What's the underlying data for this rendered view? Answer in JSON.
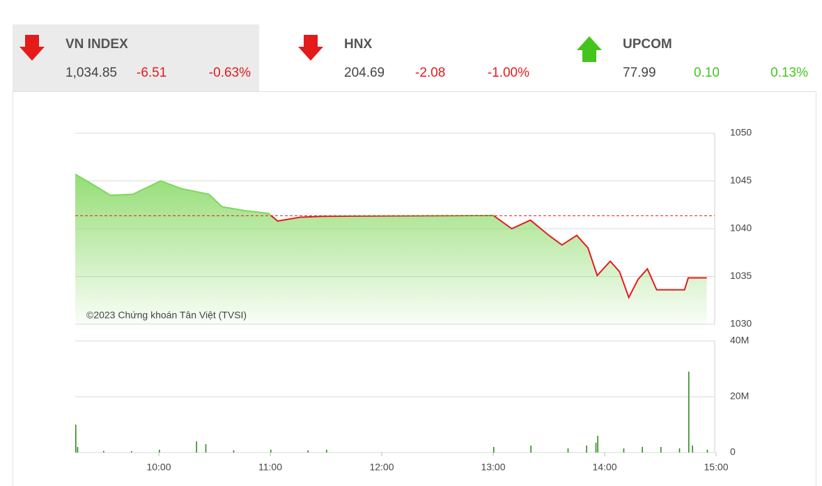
{
  "indices": [
    {
      "name": "VN INDEX",
      "value": "1,034.85",
      "change": "-6.51",
      "percent": "-0.63%"
    },
    {
      "name": "HNX",
      "value": "204.69",
      "change": "-2.08",
      "percent": "-1.00%"
    },
    {
      "name": "UPCOM",
      "value": "77.99",
      "change": "0.10",
      "percent": "0.13%"
    }
  ],
  "chart_data": [
    {
      "type": "line",
      "annotation": "©2023 Chứng khoán Tân Việt (TVSI)",
      "x": [
        "09:15",
        "09:23",
        "09:34",
        "09:46",
        "10:01",
        "10:12",
        "10:27",
        "10:34",
        "10:46",
        "10:59",
        "11:04",
        "11:16",
        "11:28",
        "13:00",
        "13:10",
        "13:20",
        "13:30",
        "13:37",
        "13:45",
        "13:51",
        "13:56",
        "14:03",
        "14:08",
        "14:13",
        "14:18",
        "14:23",
        "14:28",
        "14:43",
        "14:45",
        "14:55"
      ],
      "values": [
        1045.7,
        1044.8,
        1043.5,
        1043.6,
        1045.0,
        1044.2,
        1043.6,
        1042.3,
        1041.9,
        1041.6,
        1040.8,
        1041.2,
        1041.3,
        1041.4,
        1040.0,
        1040.9,
        1039.3,
        1038.3,
        1039.3,
        1038.0,
        1035.1,
        1036.6,
        1035.5,
        1032.8,
        1034.7,
        1035.8,
        1033.6,
        1033.6,
        1034.85,
        1034.85
      ],
      "color": "#7fd65f",
      "down_color": "#e31b1b",
      "reference_line": 1041.36,
      "xlim": [
        "09:15",
        "15:00"
      ],
      "ylim": [
        1030,
        1050
      ],
      "yticks": [
        1030,
        1035,
        1040,
        1045,
        1050
      ],
      "grid": true
    },
    {
      "type": "bar",
      "x": [
        "09:15",
        "09:16",
        "09:30",
        "09:45",
        "10:00",
        "10:20",
        "10:25",
        "10:40",
        "11:00",
        "11:20",
        "11:30",
        "13:00",
        "13:20",
        "13:40",
        "13:50",
        "13:55",
        "13:56",
        "14:10",
        "14:20",
        "14:30",
        "14:40",
        "14:45",
        "14:47",
        "14:55"
      ],
      "values": [
        10,
        2,
        0.6,
        0.5,
        1,
        4,
        3,
        0.8,
        1,
        0.8,
        1,
        2,
        2.5,
        1.5,
        2.5,
        3.5,
        6,
        1.5,
        2,
        2,
        1.5,
        29,
        2.5,
        1
      ],
      "color": "#2e8b1e",
      "xlim": [
        "09:15",
        "15:00"
      ],
      "ylim": [
        0,
        40
      ],
      "yticks": [
        0,
        {
          "value": 20,
          "label": "20M"
        },
        {
          "value": 40,
          "label": "40M"
        }
      ],
      "xticks": [
        "10:00",
        "11:00",
        "12:00",
        "13:00",
        "14:00",
        "15:00"
      ],
      "grid": true
    }
  ]
}
